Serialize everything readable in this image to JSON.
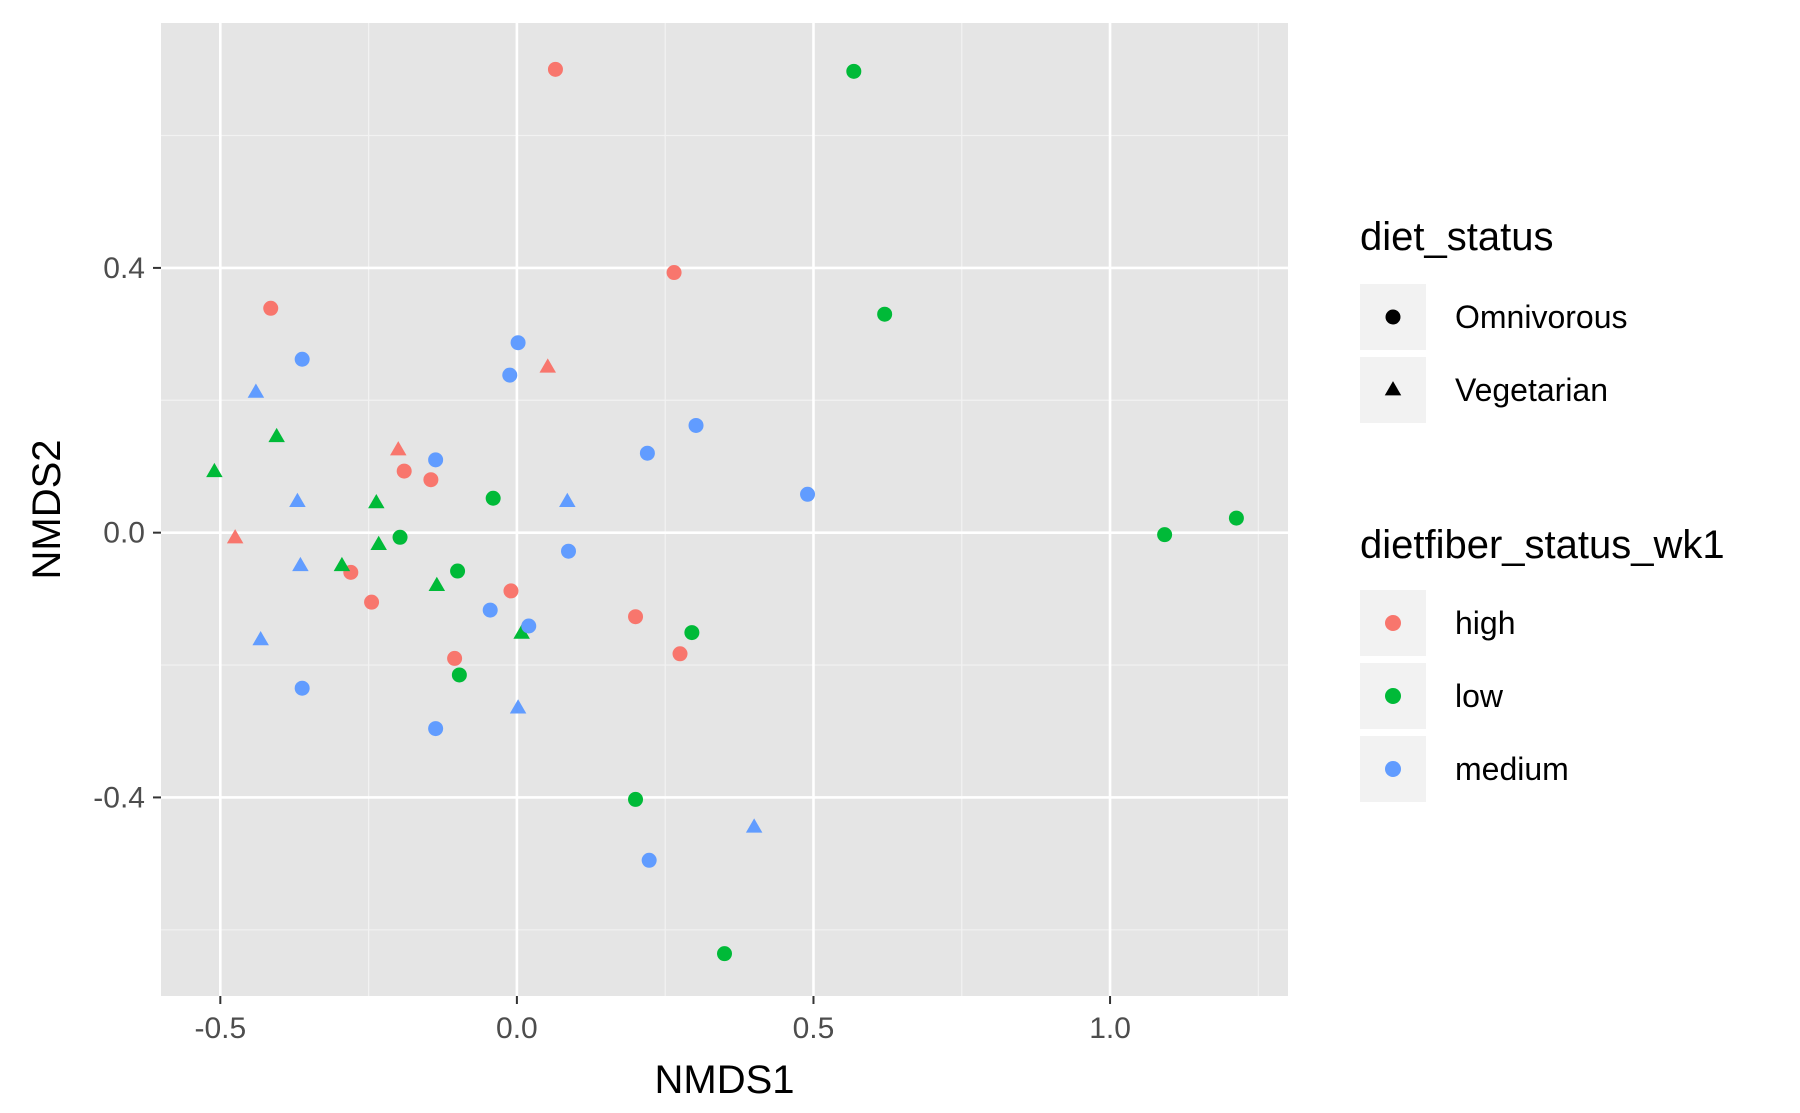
{
  "chart_data": {
    "type": "scatter",
    "xlabel": "NMDS1",
    "ylabel": "NMDS2",
    "xlim": [
      -0.6,
      1.3
    ],
    "ylim": [
      -0.7,
      0.77
    ],
    "x_ticks": [
      -0.5,
      0.0,
      0.5,
      1.0
    ],
    "x_tick_labels": [
      "-0.5",
      "0.0",
      "0.5",
      "1.0"
    ],
    "y_ticks": [
      -0.4,
      0.0,
      0.4
    ],
    "y_tick_labels": [
      "-0.4",
      "0.0",
      "0.4"
    ],
    "grid": true,
    "background": "#e5e5e5",
    "legend_position": "right",
    "legends": {
      "shape": {
        "title": "diet_status",
        "entries": [
          {
            "label": "Omnivorous",
            "shape": "circle"
          },
          {
            "label": "Vegetarian",
            "shape": "triangle"
          }
        ]
      },
      "color": {
        "title": "dietfiber_status_wk1",
        "entries": [
          {
            "label": "high",
            "color": "#f8766d"
          },
          {
            "label": "low",
            "color": "#00ba38"
          },
          {
            "label": "medium",
            "color": "#619cff"
          }
        ]
      }
    },
    "series": [
      {
        "name": "high",
        "color": "#f8766d",
        "points": [
          {
            "x": 0.065,
            "y": 0.7,
            "shape": "circle"
          },
          {
            "x": 0.265,
            "y": 0.393,
            "shape": "circle"
          },
          {
            "x": -0.415,
            "y": 0.339,
            "shape": "circle"
          },
          {
            "x": 0.052,
            "y": 0.25,
            "shape": "triangle"
          },
          {
            "x": -0.2,
            "y": 0.125,
            "shape": "triangle"
          },
          {
            "x": -0.19,
            "y": 0.093,
            "shape": "circle"
          },
          {
            "x": -0.145,
            "y": 0.08,
            "shape": "circle"
          },
          {
            "x": -0.475,
            "y": -0.008,
            "shape": "triangle"
          },
          {
            "x": -0.28,
            "y": -0.06,
            "shape": "circle"
          },
          {
            "x": -0.245,
            "y": -0.105,
            "shape": "circle"
          },
          {
            "x": -0.01,
            "y": -0.088,
            "shape": "circle"
          },
          {
            "x": 0.2,
            "y": -0.127,
            "shape": "circle"
          },
          {
            "x": -0.105,
            "y": -0.19,
            "shape": "circle"
          },
          {
            "x": 0.275,
            "y": -0.183,
            "shape": "circle"
          }
        ]
      },
      {
        "name": "low",
        "color": "#00ba38",
        "points": [
          {
            "x": 0.568,
            "y": 0.697,
            "shape": "circle"
          },
          {
            "x": 0.62,
            "y": 0.33,
            "shape": "circle"
          },
          {
            "x": -0.405,
            "y": 0.145,
            "shape": "triangle"
          },
          {
            "x": -0.51,
            "y": 0.092,
            "shape": "triangle"
          },
          {
            "x": -0.04,
            "y": 0.052,
            "shape": "circle"
          },
          {
            "x": -0.237,
            "y": 0.045,
            "shape": "triangle"
          },
          {
            "x": -0.197,
            "y": -0.007,
            "shape": "circle"
          },
          {
            "x": -0.233,
            "y": -0.018,
            "shape": "triangle"
          },
          {
            "x": -0.295,
            "y": -0.05,
            "shape": "triangle"
          },
          {
            "x": -0.1,
            "y": -0.058,
            "shape": "circle"
          },
          {
            "x": -0.135,
            "y": -0.08,
            "shape": "triangle"
          },
          {
            "x": 1.092,
            "y": -0.003,
            "shape": "circle"
          },
          {
            "x": 1.213,
            "y": 0.022,
            "shape": "circle"
          },
          {
            "x": 0.008,
            "y": -0.152,
            "shape": "triangle"
          },
          {
            "x": 0.295,
            "y": -0.151,
            "shape": "circle"
          },
          {
            "x": -0.097,
            "y": -0.215,
            "shape": "circle"
          },
          {
            "x": 0.2,
            "y": -0.403,
            "shape": "circle"
          },
          {
            "x": 0.35,
            "y": -0.636,
            "shape": "circle"
          }
        ]
      },
      {
        "name": "medium",
        "color": "#619cff",
        "points": [
          {
            "x": 0.002,
            "y": 0.287,
            "shape": "circle"
          },
          {
            "x": -0.362,
            "y": 0.262,
            "shape": "circle"
          },
          {
            "x": -0.012,
            "y": 0.238,
            "shape": "circle"
          },
          {
            "x": -0.44,
            "y": 0.212,
            "shape": "triangle"
          },
          {
            "x": 0.302,
            "y": 0.162,
            "shape": "circle"
          },
          {
            "x": 0.22,
            "y": 0.12,
            "shape": "circle"
          },
          {
            "x": -0.137,
            "y": 0.11,
            "shape": "circle"
          },
          {
            "x": 0.49,
            "y": 0.058,
            "shape": "circle"
          },
          {
            "x": -0.37,
            "y": 0.047,
            "shape": "triangle"
          },
          {
            "x": 0.085,
            "y": 0.047,
            "shape": "triangle"
          },
          {
            "x": 0.087,
            "y": -0.028,
            "shape": "circle"
          },
          {
            "x": -0.365,
            "y": -0.05,
            "shape": "triangle"
          },
          {
            "x": -0.045,
            "y": -0.117,
            "shape": "circle"
          },
          {
            "x": 0.02,
            "y": -0.141,
            "shape": "circle"
          },
          {
            "x": -0.432,
            "y": -0.162,
            "shape": "triangle"
          },
          {
            "x": -0.362,
            "y": -0.235,
            "shape": "circle"
          },
          {
            "x": 0.002,
            "y": -0.265,
            "shape": "triangle"
          },
          {
            "x": -0.137,
            "y": -0.296,
            "shape": "circle"
          },
          {
            "x": 0.4,
            "y": -0.445,
            "shape": "triangle"
          },
          {
            "x": 0.223,
            "y": -0.495,
            "shape": "circle"
          }
        ]
      }
    ]
  }
}
